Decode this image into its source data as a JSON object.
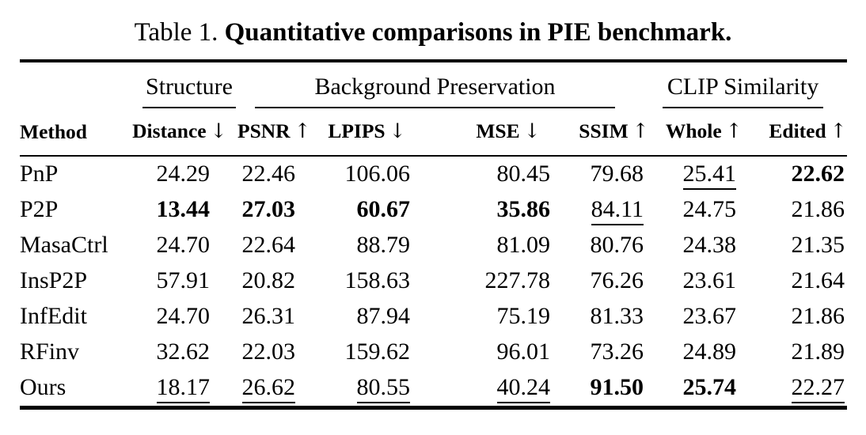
{
  "colors": {
    "text": "#000000",
    "background": "#ffffff",
    "rule": "#000000"
  },
  "caption": {
    "prefix": "Table 1. ",
    "title": "Quantitative comparisons in PIE benchmark."
  },
  "table": {
    "col_groups": [
      {
        "label": "Structure",
        "span": "1"
      },
      {
        "label": "Background Preservation",
        "span": "4"
      },
      {
        "label": "CLIP Similarity",
        "span": "2"
      }
    ],
    "columns": [
      {
        "label": "Method",
        "arrow": ""
      },
      {
        "label": "Distance",
        "arrow": "↓"
      },
      {
        "label": "PSNR",
        "arrow": "↑"
      },
      {
        "label": "LPIPS",
        "arrow": "↓"
      },
      {
        "label": "MSE",
        "arrow": "↓"
      },
      {
        "label": "SSIM",
        "arrow": "↑"
      },
      {
        "label": "Whole",
        "arrow": "↑"
      },
      {
        "label": "Edited",
        "arrow": "↑"
      }
    ],
    "format_legend": {
      "b": "bold (best)",
      "u": "underline (second best)",
      "": "plain"
    },
    "rows": [
      {
        "method": "PnP",
        "values": [
          "24.29",
          "22.46",
          "106.06",
          "80.45",
          "79.68",
          "25.41",
          "22.62"
        ],
        "fmt": [
          "",
          "",
          "",
          "",
          "",
          "u",
          "b"
        ]
      },
      {
        "method": "P2P",
        "values": [
          "13.44",
          "27.03",
          "60.67",
          "35.86",
          "84.11",
          "24.75",
          "21.86"
        ],
        "fmt": [
          "b",
          "b",
          "b",
          "b",
          "u",
          "",
          ""
        ]
      },
      {
        "method": "MasaCtrl",
        "values": [
          "24.70",
          "22.64",
          "88.79",
          "81.09",
          "80.76",
          "24.38",
          "21.35"
        ],
        "fmt": [
          "",
          "",
          "",
          "",
          "",
          "",
          ""
        ]
      },
      {
        "method": "InsP2P",
        "values": [
          "57.91",
          "20.82",
          "158.63",
          "227.78",
          "76.26",
          "23.61",
          "21.64"
        ],
        "fmt": [
          "",
          "",
          "",
          "",
          "",
          "",
          ""
        ]
      },
      {
        "method": "InfEdit",
        "values": [
          "24.70",
          "26.31",
          "87.94",
          "75.19",
          "81.33",
          "23.67",
          "21.86"
        ],
        "fmt": [
          "",
          "",
          "",
          "",
          "",
          "",
          ""
        ]
      },
      {
        "method": "RFinv",
        "values": [
          "32.62",
          "22.03",
          "159.62",
          "96.01",
          "73.26",
          "24.89",
          "21.89"
        ],
        "fmt": [
          "",
          "",
          "",
          "",
          "",
          "",
          ""
        ]
      },
      {
        "method": "Ours",
        "values": [
          "18.17",
          "26.62",
          "80.55",
          "40.24",
          "91.50",
          "25.74",
          "22.27"
        ],
        "fmt": [
          "u",
          "u",
          "u",
          "u",
          "b",
          "b",
          "u"
        ]
      }
    ]
  }
}
